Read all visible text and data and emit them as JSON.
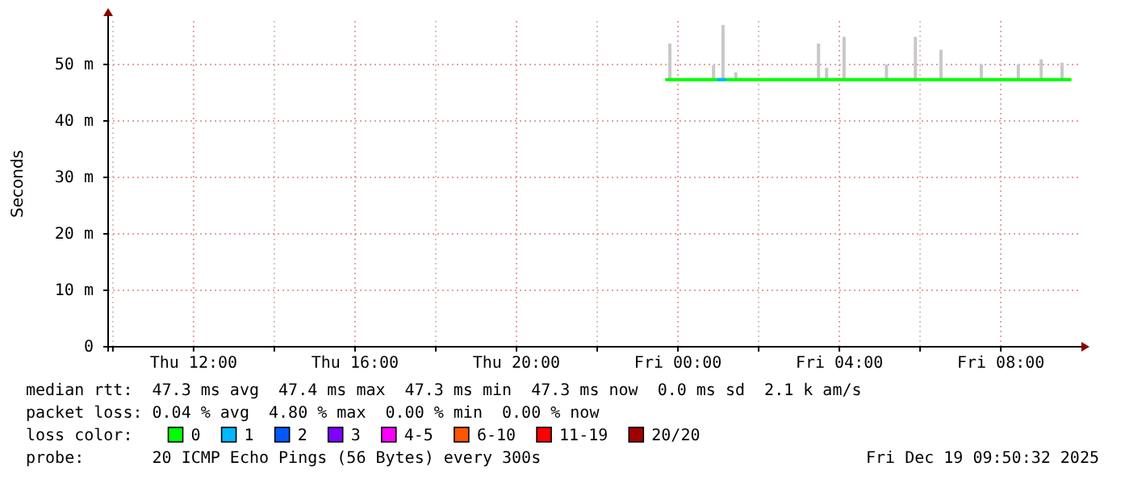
{
  "chart_data": {
    "type": "line",
    "ylabel": "Seconds",
    "xlim": [
      "2025-12-18T09:53",
      "2025-12-19T09:55"
    ],
    "xticks": [
      {
        "value": "2025-12-18T10:00",
        "label": null
      },
      {
        "value": "2025-12-18T12:00",
        "label": "Thu 12:00"
      },
      {
        "value": "2025-12-18T14:00",
        "label": null
      },
      {
        "value": "2025-12-18T16:00",
        "label": "Thu 16:00"
      },
      {
        "value": "2025-12-18T18:00",
        "label": null
      },
      {
        "value": "2025-12-18T20:00",
        "label": "Thu 20:00"
      },
      {
        "value": "2025-12-18T22:00",
        "label": null
      },
      {
        "value": "2025-12-19T00:00",
        "label": "Fri 00:00"
      },
      {
        "value": "2025-12-19T02:00",
        "label": null
      },
      {
        "value": "2025-12-19T04:00",
        "label": "Fri 04:00"
      },
      {
        "value": "2025-12-19T06:00",
        "label": null
      },
      {
        "value": "2025-12-19T08:00",
        "label": "Fri 08:00"
      }
    ],
    "ylim": [
      0,
      57.7
    ],
    "yticks": [
      0,
      {
        "value": 10,
        "label": "10 m"
      },
      {
        "value": 20,
        "label": "20 m"
      },
      {
        "value": 30,
        "label": "30 m"
      },
      {
        "value": 40,
        "label": "40 m"
      },
      {
        "value": 50,
        "label": "50 m"
      }
    ],
    "grid": true,
    "legend": "bottom",
    "legend_title": "loss color:",
    "series": [
      {
        "type": "bar",
        "color": "#c8c8c8",
        "x": [
          "2025-12-18T23:48",
          "2025-12-19T00:53",
          "2025-12-19T01:07",
          "2025-12-19T01:26",
          "2025-12-19T03:29",
          "2025-12-19T03:41",
          "2025-12-19T04:07",
          "2025-12-19T05:10",
          "2025-12-19T05:53",
          "2025-12-19T06:31",
          "2025-12-19T07:31",
          "2025-12-19T08:26",
          "2025-12-19T09:00",
          "2025-12-19T09:31"
        ],
        "base": [
          47.3,
          47.3,
          47.3,
          47.3,
          47.3,
          47.3,
          47.3,
          47.3,
          47.3,
          47.3,
          47.3,
          47.3,
          47.3,
          47.3
        ],
        "values": [
          6.4,
          2.6,
          9.7,
          1.3,
          6.4,
          2.1,
          7.6,
          2.7,
          7.6,
          5.3,
          2.7,
          2.7,
          3.6,
          3
        ]
      },
      {
        "name": "0",
        "color": "#00ff00",
        "x": [
          "2025-12-18T23:43",
          "2025-12-19T09:43"
        ],
        "values": [
          47.3,
          47.3
        ]
      },
      {
        "name": "1",
        "color": "#00b8ff",
        "x": [
          "2025-12-19T01:00",
          "2025-12-19T01:10"
        ],
        "values": [
          47.3,
          47.3
        ]
      },
      {
        "name": "2",
        "color": "#0059ff"
      },
      {
        "name": "3",
        "color": "#7e00ff"
      },
      {
        "name": "4-5",
        "color": "#ff00ff"
      },
      {
        "name": "6-10",
        "color": "#ff5500"
      },
      {
        "name": "11-19",
        "color": "#ff0000"
      },
      {
        "name": "20/20",
        "color": "#a10000"
      }
    ],
    "annotations": [
      "median rtt:  47.3 ms avg  47.4 ms max  47.3 ms min  47.3 ms now  0.0 ms sd  2.1 k am/s",
      "packet loss: 0.04 % avg  4.80 % max  0.00 % min  0.00 % now",
      "probe:       20 ICMP Echo Pings (56 Bytes) every 300s",
      "Fri Dec 19 09:50:32 2025"
    ]
  }
}
